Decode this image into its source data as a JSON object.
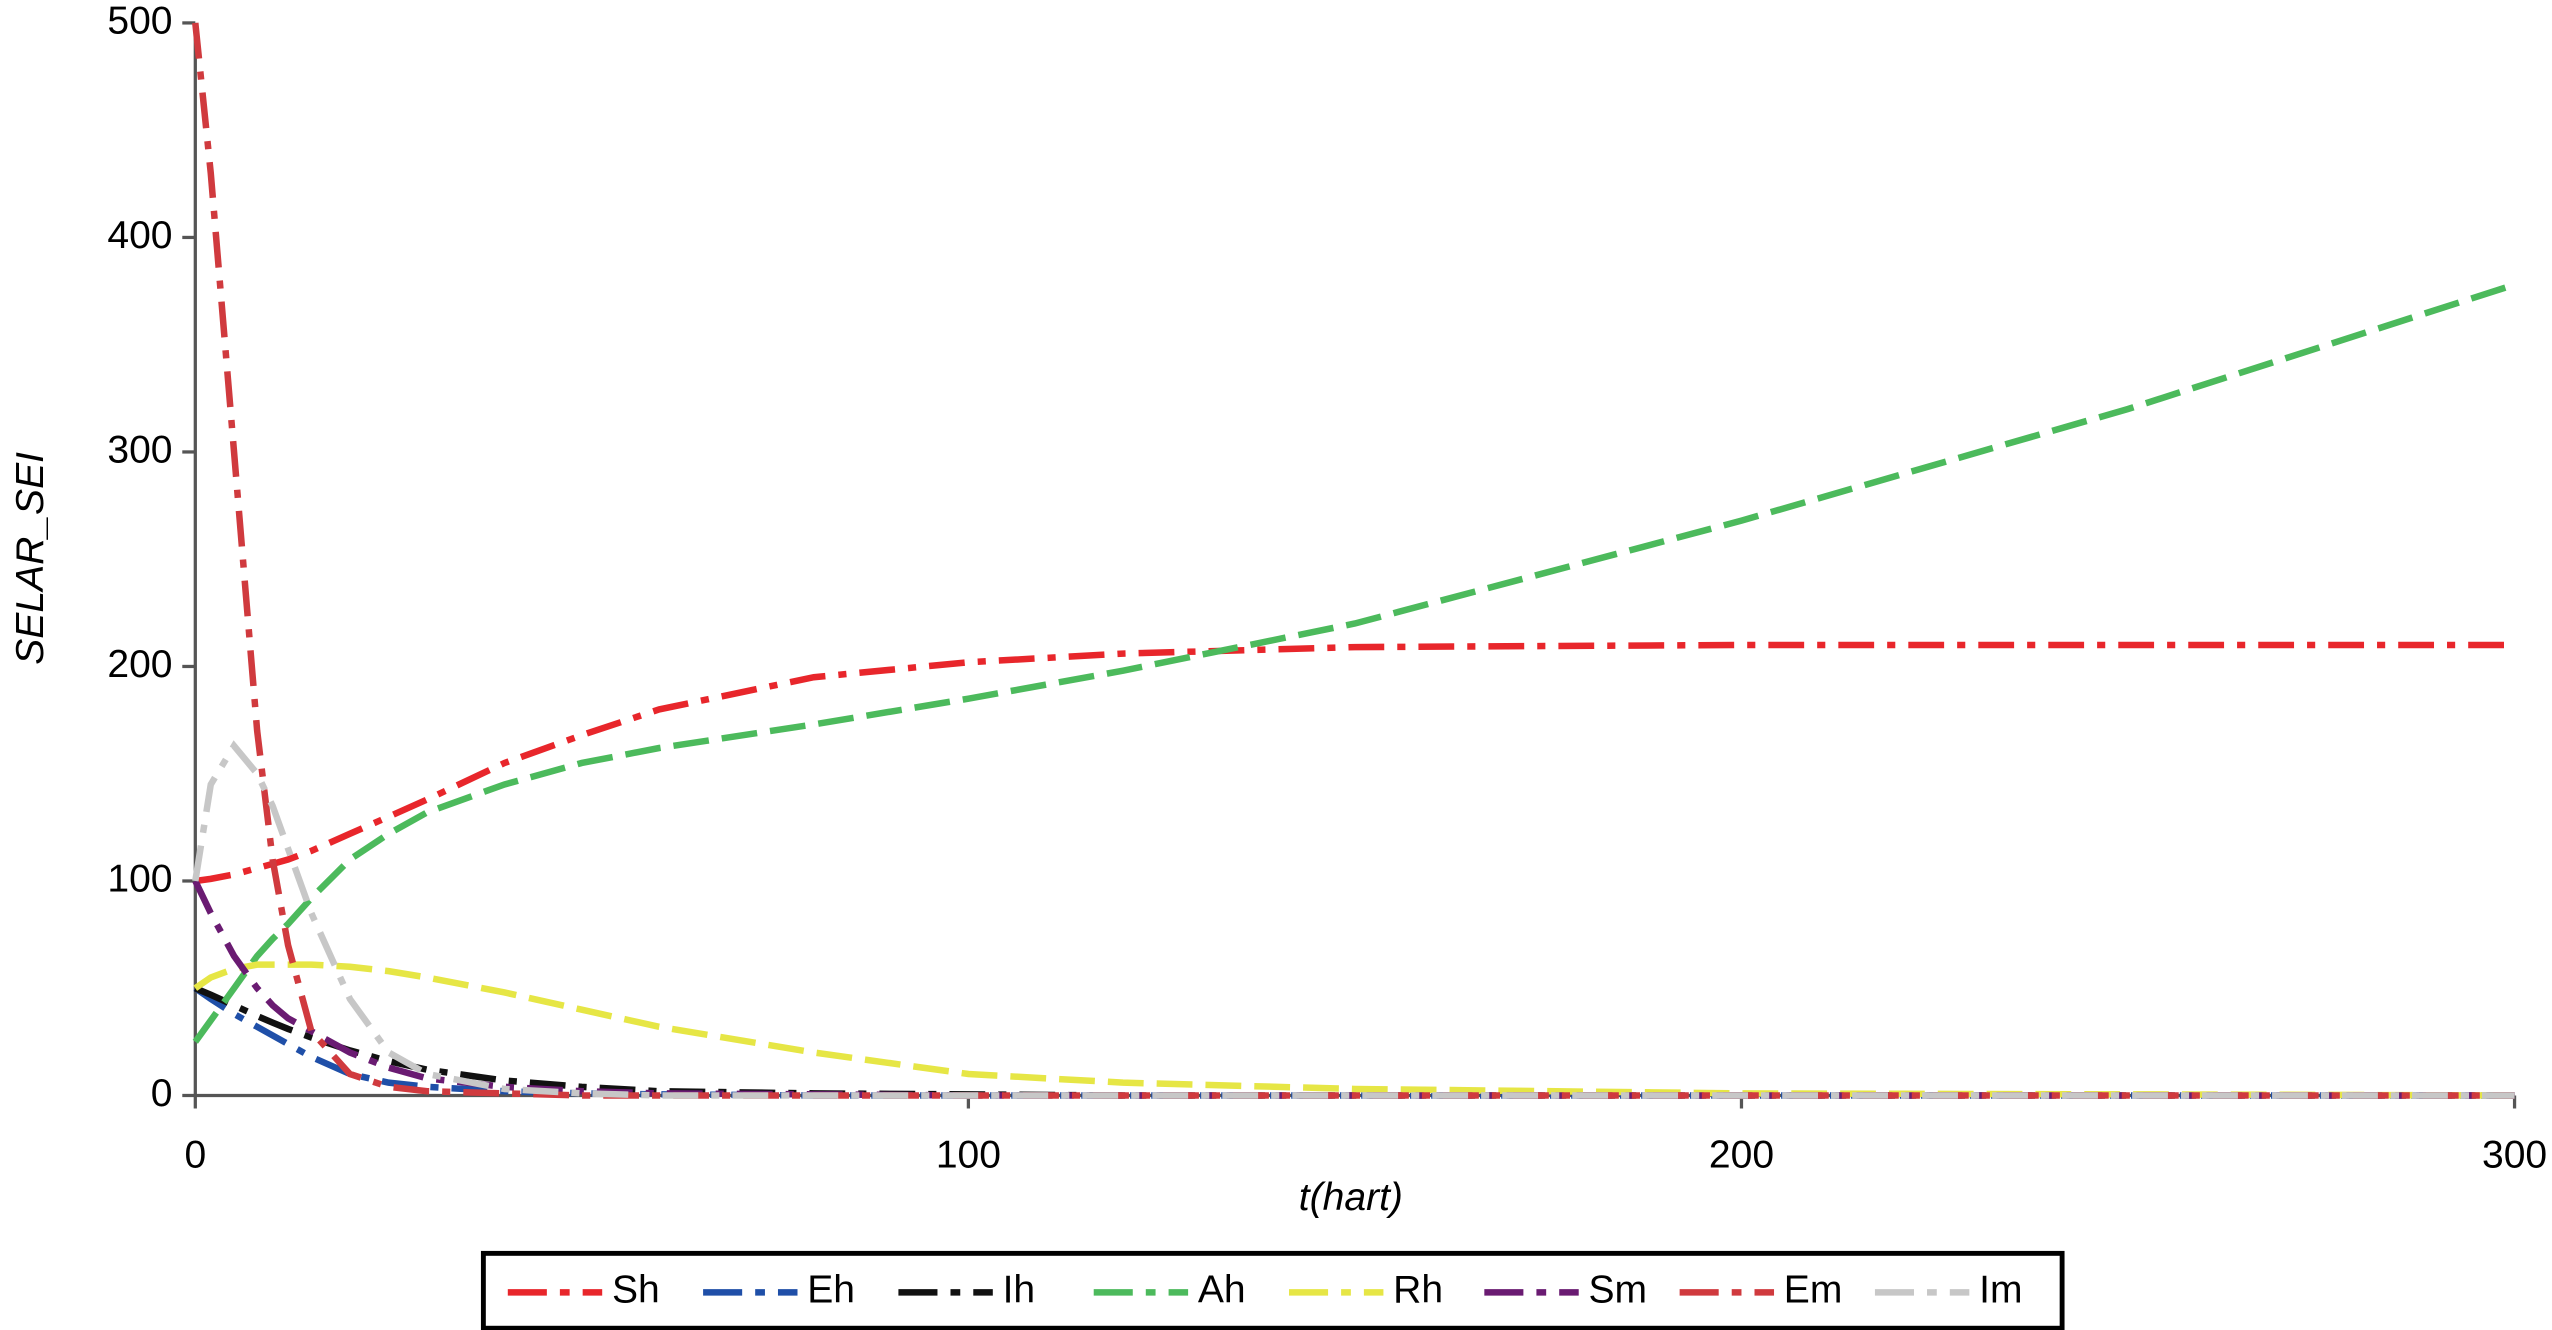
{
  "chart_data": {
    "type": "line",
    "xlabel": "t(hart)",
    "ylabel": "SELAR_SEI",
    "x": [
      0,
      2,
      5,
      8,
      10,
      12,
      15,
      20,
      25,
      30,
      40,
      50,
      60,
      80,
      100,
      120,
      150,
      200,
      250,
      300
    ],
    "series": [
      {
        "name": "Sh",
        "color": "#e8262b",
        "values": [
          100,
          101,
          103,
          106,
          108,
          110,
          114,
          122,
          130,
          138,
          155,
          168,
          180,
          195,
          202,
          206,
          209,
          210,
          210,
          210
        ]
      },
      {
        "name": "Eh",
        "color": "#1f4fa8",
        "values": [
          50,
          45,
          38,
          32,
          28,
          24,
          18,
          10,
          6,
          4,
          2,
          1,
          0.5,
          0,
          0,
          0,
          0,
          0,
          0,
          0
        ]
      },
      {
        "name": "Ih",
        "color": "#111111",
        "values": [
          50,
          47,
          42,
          37,
          34,
          31,
          27,
          21,
          16,
          12,
          7,
          4,
          2,
          1,
          0.5,
          0,
          0,
          0,
          0,
          0
        ]
      },
      {
        "name": "Ah",
        "color": "#4cba5c",
        "values": [
          25,
          35,
          50,
          65,
          73,
          80,
          92,
          110,
          122,
          132,
          145,
          155,
          162,
          173,
          185,
          198,
          220,
          268,
          320,
          378
        ]
      },
      {
        "name": "Rh",
        "color": "#e6e645",
        "values": [
          50,
          55,
          59,
          61,
          61,
          61,
          61,
          60,
          58,
          55,
          48,
          40,
          32,
          20,
          10,
          6,
          3,
          1,
          0.5,
          0
        ]
      },
      {
        "name": "Sm",
        "color": "#6a1b72",
        "values": [
          100,
          85,
          65,
          50,
          42,
          36,
          30,
          20,
          13,
          8,
          4,
          2,
          1,
          0.5,
          0,
          0,
          0,
          0,
          0,
          0
        ]
      },
      {
        "name": "Em",
        "color": "#d03a3e",
        "values": [
          500,
          430,
          300,
          170,
          110,
          70,
          30,
          10,
          4,
          2,
          1,
          0,
          0,
          0,
          0,
          0,
          0,
          0,
          0,
          0
        ]
      },
      {
        "name": "Im",
        "color": "#c7c7c7",
        "values": [
          100,
          145,
          163,
          150,
          135,
          115,
          85,
          45,
          20,
          10,
          3,
          1,
          0,
          0,
          0,
          0,
          0,
          0,
          0,
          0
        ]
      }
    ],
    "xlim": [
      0,
      300
    ],
    "xticks": [
      0,
      100,
      200,
      300
    ],
    "ylim": [
      0,
      500
    ],
    "yticks": [
      0,
      100,
      200,
      300,
      400,
      500
    ],
    "legend": "bottom"
  }
}
